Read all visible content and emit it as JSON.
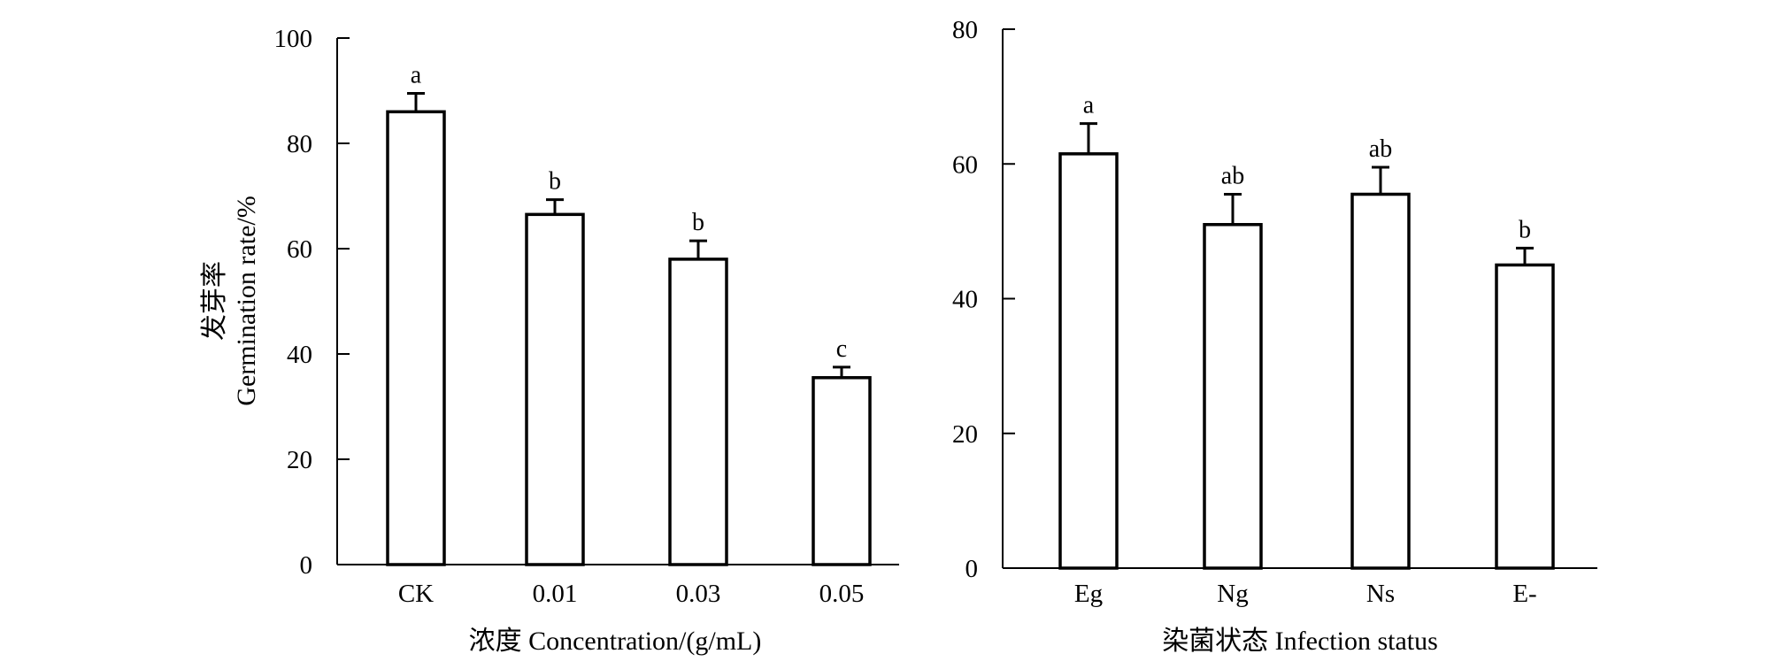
{
  "chart_data": [
    {
      "type": "bar",
      "categories": [
        "CK",
        "0.01",
        "0.03",
        "0.05"
      ],
      "values": [
        86,
        66.5,
        58,
        35.5
      ],
      "errors": [
        3.5,
        2.8,
        3.5,
        2.0
      ],
      "significance": [
        "a",
        "b",
        "b",
        "c"
      ],
      "xlabel": "浓度 Concentration/(g/mL)",
      "ylabel_cn": "发芽率",
      "ylabel_en": "Germination rate/%",
      "ylim": [
        0,
        100
      ],
      "yticks": [
        "0",
        "20",
        "40",
        "60",
        "80",
        "100"
      ],
      "grid": false,
      "legend": "none"
    },
    {
      "type": "bar",
      "categories": [
        "Eg",
        "Ng",
        "Ns",
        "E-"
      ],
      "values": [
        61.5,
        51,
        55.5,
        45
      ],
      "errors": [
        4.5,
        4.5,
        4.0,
        2.5
      ],
      "significance": [
        "a",
        "ab",
        "ab",
        "b"
      ],
      "xlabel": "染菌状态 Infection status",
      "ylim": [
        0,
        80
      ],
      "yticks": [
        "0",
        "20",
        "40",
        "60",
        "80"
      ],
      "grid": false,
      "legend": "none"
    }
  ]
}
